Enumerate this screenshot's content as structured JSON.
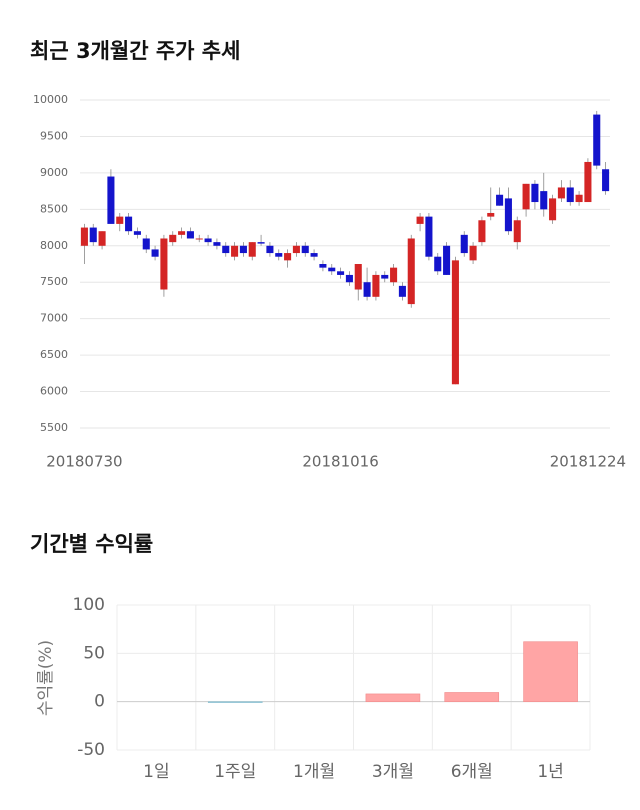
{
  "chart_data": [
    {
      "type": "candlestick",
      "title": "최근 3개월간 주가 추세",
      "categories": [
        "20180730",
        null,
        null,
        null,
        null,
        null,
        null,
        null,
        null,
        null,
        null,
        null,
        null,
        null,
        null,
        null,
        null,
        null,
        null,
        null,
        null,
        null,
        null,
        null,
        null,
        null,
        null,
        null,
        null,
        "20181016",
        null,
        null,
        null,
        null,
        null,
        null,
        null,
        null,
        null,
        null,
        null,
        null,
        null,
        null,
        null,
        null,
        null,
        null,
        null,
        null,
        null,
        null,
        null,
        null,
        null,
        null,
        null,
        "20181224",
        null,
        null
      ],
      "open": [
        8000,
        8250,
        8000,
        8950,
        8300,
        8400,
        8200,
        8100,
        7950,
        7400,
        8050,
        8150,
        8200,
        8100,
        8100,
        8050,
        8000,
        7850,
        8000,
        7850,
        8050,
        8000,
        7900,
        7800,
        7900,
        8000,
        7900,
        7750,
        7700,
        7650,
        7600,
        7400,
        7500,
        7300,
        7600,
        7500,
        7450,
        7200,
        8300,
        8400,
        7850,
        8000,
        6100,
        8150,
        7800,
        8050,
        8400,
        8700,
        8650,
        8050,
        8500,
        8850,
        8750,
        8350,
        8650,
        8800,
        8600,
        8600,
        9800,
        9050
      ],
      "high": [
        8300,
        8300,
        8200,
        9050,
        8450,
        8450,
        8250,
        8150,
        8000,
        8150,
        8200,
        8250,
        8250,
        8150,
        8150,
        8100,
        8050,
        8050,
        8050,
        8050,
        8150,
        8050,
        7950,
        7950,
        8050,
        8050,
        7950,
        7800,
        7750,
        7700,
        7650,
        7750,
        7700,
        7650,
        7650,
        7750,
        7500,
        8150,
        8450,
        8450,
        7900,
        8050,
        7850,
        8200,
        8050,
        8400,
        8800,
        8800,
        8800,
        8400,
        8850,
        8900,
        9000,
        8700,
        8900,
        8900,
        8750,
        9200,
        9850,
        9150
      ],
      "low": [
        7750,
        8000,
        7950,
        8300,
        8200,
        8150,
        8100,
        7900,
        7800,
        7300,
        8000,
        8100,
        8100,
        8050,
        8000,
        7950,
        7850,
        7800,
        7850,
        7800,
        8000,
        7850,
        7800,
        7700,
        7850,
        7850,
        7800,
        7650,
        7600,
        7550,
        7450,
        7250,
        7250,
        7250,
        7500,
        7450,
        7250,
        7150,
        8200,
        7800,
        7600,
        7600,
        6100,
        7850,
        7750,
        8000,
        8350,
        8550,
        8150,
        7950,
        8400,
        8500,
        8400,
        8300,
        8600,
        8550,
        8550,
        8600,
        9050,
        8700
      ],
      "close": [
        8250,
        8050,
        8200,
        8300,
        8400,
        8200,
        8150,
        7950,
        7850,
        8100,
        8150,
        8200,
        8100,
        8100,
        8050,
        8000,
        7900,
        8000,
        7900,
        8050,
        8030,
        7900,
        7850,
        7900,
        8000,
        7900,
        7850,
        7700,
        7650,
        7600,
        7500,
        7750,
        7300,
        7600,
        7550,
        7700,
        7300,
        8100,
        8400,
        7850,
        7650,
        7600,
        7800,
        7900,
        8000,
        8350,
        8450,
        8550,
        8200,
        8350,
        8850,
        8600,
        8500,
        8650,
        8800,
        8600,
        8700,
        9150,
        9100,
        8750
      ],
      "up_color": "#d42525",
      "down_color": "#1414cc",
      "ylim": [
        5500,
        10000
      ],
      "yticks": [
        5500,
        6000,
        6500,
        7000,
        7500,
        8000,
        8500,
        9000,
        9500,
        10000
      ],
      "grid": true
    },
    {
      "type": "bar",
      "title": "기간별 수익률",
      "ylabel": "수익률(%)",
      "categories": [
        "1일",
        "1주일",
        "1개월",
        "3개월",
        "6개월",
        "1년"
      ],
      "values": [
        0,
        -1,
        0,
        8,
        9.5,
        62
      ],
      "positive_color": "#ffa5a5",
      "negative_color": "#a6d4e2",
      "ylim": [
        -50,
        100
      ],
      "yticks": [
        -50,
        0,
        50,
        100
      ],
      "grid": true
    }
  ]
}
